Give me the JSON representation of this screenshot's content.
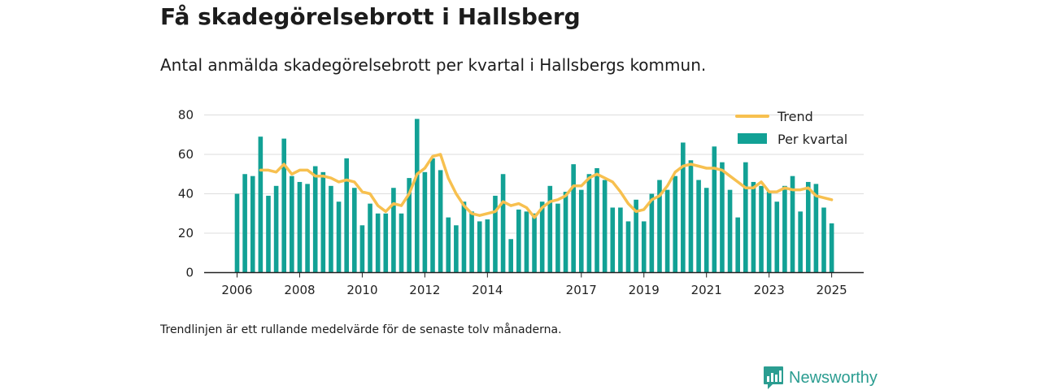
{
  "title": "Få skadegörelsebrott i Hallsberg",
  "subtitle": "Antal anmälda skadegörelsebrott per kvartal i Hallsbergs kommun.",
  "footnote": "Trendlinjen är ett rullande medelvärde för de senaste tolv månaderna.",
  "brand": {
    "name": "Newsworthy",
    "icon": "newsworthy-logo-icon",
    "color": "#2b9d91"
  },
  "colors": {
    "bars": "#12a195",
    "trend": "#f7c04f",
    "grid": "#dddddd",
    "axis": "#222222"
  },
  "chart_data": {
    "type": "bar",
    "title": "",
    "xlabel": "",
    "ylabel": "",
    "ylim": [
      0,
      80
    ],
    "yticks": [
      0,
      20,
      40,
      60,
      80
    ],
    "xticks": [
      "2006",
      "2008",
      "2010",
      "2012",
      "2014",
      "2017",
      "2019",
      "2021",
      "2023",
      "2025"
    ],
    "grid": true,
    "legend_position": "top-right",
    "x": [
      "2006 Q1",
      "2006 Q2",
      "2006 Q3",
      "2006 Q4",
      "2007 Q1",
      "2007 Q2",
      "2007 Q3",
      "2007 Q4",
      "2008 Q1",
      "2008 Q2",
      "2008 Q3",
      "2008 Q4",
      "2009 Q1",
      "2009 Q2",
      "2009 Q3",
      "2009 Q4",
      "2010 Q1",
      "2010 Q2",
      "2010 Q3",
      "2010 Q4",
      "2011 Q1",
      "2011 Q2",
      "2011 Q3",
      "2011 Q4",
      "2012 Q1",
      "2012 Q2",
      "2012 Q3",
      "2012 Q4",
      "2013 Q1",
      "2013 Q2",
      "2013 Q3",
      "2013 Q4",
      "2014 Q1",
      "2014 Q2",
      "2014 Q3",
      "2014 Q4",
      "2015 Q1",
      "2015 Q2",
      "2015 Q3",
      "2015 Q4",
      "2016 Q1",
      "2016 Q2",
      "2016 Q3",
      "2016 Q4",
      "2017 Q1",
      "2017 Q2",
      "2017 Q3",
      "2017 Q4",
      "2018 Q1",
      "2018 Q2",
      "2018 Q3",
      "2018 Q4",
      "2019 Q1",
      "2019 Q2",
      "2019 Q3",
      "2019 Q4",
      "2020 Q1",
      "2020 Q2",
      "2020 Q3",
      "2020 Q4",
      "2021 Q1",
      "2021 Q2",
      "2021 Q3",
      "2021 Q4",
      "2022 Q1",
      "2022 Q2",
      "2022 Q3",
      "2022 Q4",
      "2023 Q1",
      "2023 Q2",
      "2023 Q3",
      "2023 Q4",
      "2024 Q1",
      "2024 Q2",
      "2024 Q3",
      "2024 Q4",
      "2025 Q1"
    ],
    "series": [
      {
        "name": "Per kvartal",
        "type": "bar",
        "values": [
          40,
          50,
          49,
          69,
          39,
          44,
          68,
          49,
          46,
          45,
          54,
          51,
          44,
          36,
          58,
          43,
          24,
          35,
          30,
          30,
          43,
          30,
          48,
          78,
          51,
          58,
          52,
          28,
          24,
          36,
          31,
          26,
          27,
          39,
          50,
          17,
          32,
          31,
          30,
          36,
          44,
          35,
          41,
          55,
          42,
          50,
          53,
          47,
          33,
          33,
          26,
          37,
          26,
          40,
          47,
          42,
          49,
          66,
          57,
          47,
          43,
          64,
          56,
          42,
          28,
          56,
          46,
          44,
          41,
          36,
          44,
          49,
          31,
          46,
          45,
          33,
          25
        ]
      },
      {
        "name": "Trend",
        "type": "line",
        "values": [
          null,
          null,
          null,
          52,
          52,
          51,
          55,
          50,
          52,
          52,
          49,
          49,
          48,
          46,
          47,
          46,
          41,
          40,
          34,
          31,
          35,
          34,
          40,
          50,
          53,
          59,
          60,
          48,
          40,
          34,
          30,
          29,
          30,
          31,
          36,
          34,
          35,
          33,
          28,
          33,
          36,
          37,
          39,
          44,
          44,
          48,
          50,
          48,
          46,
          41,
          35,
          31,
          32,
          37,
          39,
          44,
          51,
          54,
          55,
          54,
          53,
          53,
          52,
          49,
          46,
          43,
          43,
          46,
          41,
          41,
          43,
          42,
          42,
          43,
          39,
          38,
          37
        ]
      }
    ]
  }
}
